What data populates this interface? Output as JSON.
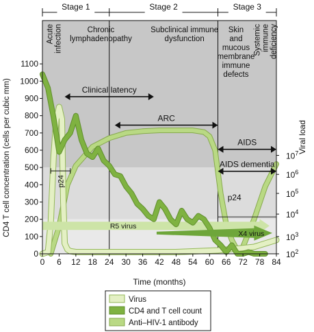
{
  "chart_data": {
    "type": "line",
    "xlabel": "Time (months)",
    "ylabel": "CD4 T cell concentration (cells per cubic mm)",
    "y2label": "Viral load",
    "xlim": [
      0,
      84
    ],
    "ylim": [
      0,
      1200
    ],
    "x_ticks": [
      0,
      6,
      12,
      18,
      24,
      30,
      36,
      42,
      48,
      54,
      60,
      66,
      72,
      78,
      84
    ],
    "y_ticks": [
      0,
      100,
      200,
      300,
      400,
      500,
      600,
      700,
      800,
      900,
      1000,
      1100
    ],
    "y2_ticks": [
      {
        "base": "10",
        "exp": "2",
        "y": 0
      },
      {
        "base": "10",
        "exp": "3",
        "y": 100
      },
      {
        "base": "10",
        "exp": "4",
        "y": 230
      },
      {
        "base": "10",
        "exp": "5",
        "y": 350
      },
      {
        "base": "10",
        "exp": "6",
        "y": 460
      },
      {
        "base": "10",
        "exp": "7",
        "y": 570
      }
    ],
    "stages": [
      {
        "label": "Stage 1",
        "x0": 0,
        "x1": 24
      },
      {
        "label": "Stage 2",
        "x0": 24,
        "x1": 63
      },
      {
        "label": "Stage 3",
        "x0": 63,
        "x1": 84
      }
    ],
    "phases": [
      {
        "lines": [
          "Acute",
          "infection"
        ],
        "x": 5,
        "rotated": true
      },
      {
        "lines": [
          "Chronic",
          "lymphadenopathy"
        ],
        "x": 21,
        "rotated": false
      },
      {
        "lines": [
          "Subclinical immune",
          "dysfunction"
        ],
        "x": 51,
        "rotated": false
      },
      {
        "lines": [
          "Skin",
          "and",
          "mucous",
          "membrane",
          "immune",
          "defects"
        ],
        "x": 69.5,
        "rotated": false
      },
      {
        "lines": [
          "Systemic",
          "immune",
          "deficiency"
        ],
        "x": 79.5,
        "rotated": true
      }
    ],
    "periods": [
      {
        "label": "Clinical latency",
        "x0": 8,
        "x1": 40,
        "y": 910
      },
      {
        "label": "ARC",
        "x0": 26,
        "x1": 63,
        "y": 745
      },
      {
        "label": "AIDS",
        "x0": 63,
        "x1": 84,
        "y": 605
      },
      {
        "label": "AIDS dementia",
        "x0": 63,
        "x1": 84,
        "y": 478
      }
    ],
    "series": [
      {
        "name": "Virus",
        "x": [
          0,
          2,
          3,
          4,
          5,
          6,
          7,
          7.5,
          8,
          9,
          10,
          12,
          24,
          48,
          63,
          70,
          76,
          80,
          84
        ],
        "y": [
          0,
          10,
          180,
          560,
          780,
          850,
          780,
          300,
          60,
          25,
          15,
          10,
          10,
          10,
          20,
          30,
          40,
          60,
          80
        ]
      },
      {
        "name": "CD4 and T cell count",
        "x": [
          0,
          2,
          4,
          6,
          8,
          10,
          12,
          14,
          16,
          18,
          20,
          22,
          24,
          26,
          28,
          30,
          32,
          34,
          36,
          38,
          40,
          42,
          44,
          46,
          48,
          50,
          52,
          54,
          56,
          58,
          60,
          62,
          64,
          66,
          68,
          70,
          72,
          74,
          76,
          78,
          80
        ],
        "y": [
          1040,
          960,
          790,
          590,
          660,
          700,
          800,
          660,
          580,
          560,
          610,
          540,
          510,
          460,
          450,
          390,
          350,
          290,
          260,
          220,
          200,
          300,
          260,
          200,
          170,
          250,
          200,
          180,
          220,
          200,
          150,
          80,
          50,
          10,
          50,
          0,
          0,
          10,
          0,
          0,
          0
        ]
      },
      {
        "name": "Anti–HIV-1 antibody",
        "x": [
          3,
          6,
          9,
          12,
          18,
          24,
          30,
          36,
          42,
          48,
          54,
          58,
          60,
          62,
          64,
          66,
          68,
          70,
          72,
          76,
          80,
          84
        ],
        "y": [
          0,
          160,
          400,
          510,
          620,
          670,
          700,
          710,
          715,
          715,
          715,
          705,
          680,
          600,
          350,
          170,
          80,
          20,
          40,
          200,
          390,
          520
        ]
      }
    ],
    "arrows": [
      {
        "label": "R5 virus",
        "x0": 0,
        "x1": 84,
        "y": 162
      },
      {
        "label": "X4 virus",
        "x0": 41,
        "x1": 84,
        "y": 120
      }
    ],
    "annotations": [
      {
        "label": "p24",
        "kind": "acute",
        "x0": 3,
        "x1": 10,
        "y": 480
      },
      {
        "label": "p24",
        "kind": "late",
        "x": 66,
        "y": 325
      }
    ],
    "legend": {
      "position": "bottom",
      "items": [
        {
          "label": "Virus",
          "color": "#e4f0c4",
          "stroke": "#93b758"
        },
        {
          "label": "CD4 and T cell count",
          "color": "#7fb241",
          "stroke": "#5f8e2c"
        },
        {
          "label": "Anti–HIV-1 antibody",
          "color": "#b9d984",
          "stroke": "#86a94d"
        }
      ]
    },
    "colors": {
      "band_top": "#c7c7c7",
      "band_mid": "#dcdcdc",
      "band_low": "#e9e9e9",
      "virus": "#e4f0c4",
      "cd4": "#7fb241",
      "antibody": "#b9d984",
      "r5_arrow": "#cde4a7",
      "x4_arrow": "#6ea63a"
    }
  }
}
